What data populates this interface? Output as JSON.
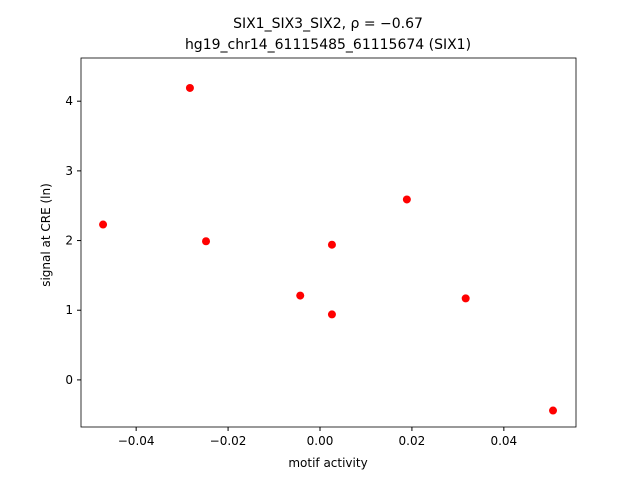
{
  "chart_data": {
    "type": "scatter",
    "title": "SIX1_SIX3_SIX2, ρ = −0.67",
    "subtitle": "hg19_chr14_61115485_61115674 (SIX1)",
    "x_label": "motif activity",
    "y_label": "signal at CRE (ln)",
    "series": [
      {
        "color": "#ff0000",
        "x": [
          -0.0472,
          -0.0283,
          -0.0248,
          -0.0043,
          0.0026,
          0.0026,
          0.0189,
          0.0317,
          0.0507
        ],
        "values": [
          2.23,
          4.19,
          1.99,
          1.21,
          1.94,
          0.94,
          2.59,
          1.17,
          -0.44
        ]
      }
    ],
    "xlim": [
      -0.052,
      0.0557
    ],
    "ylim": [
      -0.676,
      4.62
    ],
    "xticks": [
      {
        "value": -0.04,
        "label": "−0.04"
      },
      {
        "value": -0.02,
        "label": "−0.02"
      },
      {
        "value": 0,
        "label": "0.00"
      },
      0.02,
      0.04
    ],
    "yticks": [
      0,
      1,
      2,
      3,
      4
    ],
    "grid": false
  }
}
